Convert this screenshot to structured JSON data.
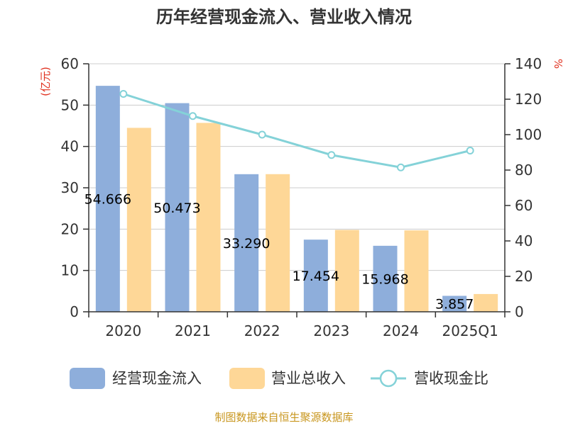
{
  "chart_data": {
    "type": "bar",
    "title": "历年经营现金流入、营业收入情况",
    "categories": [
      "2020",
      "2021",
      "2022",
      "2023",
      "2024",
      "2025Q1"
    ],
    "series": [
      {
        "name": "经营现金流入",
        "kind": "bar",
        "axis": "left",
        "color": "#8eaedb",
        "values": [
          54.666,
          50.473,
          33.29,
          17.454,
          15.968,
          3.857
        ],
        "labels": [
          "54.666",
          "50.473",
          "33.290",
          "17.454",
          "15.968",
          "3.857"
        ]
      },
      {
        "name": "营业总收入",
        "kind": "bar",
        "axis": "left",
        "color": "#fed797",
        "values": [
          44.5,
          45.7,
          33.3,
          19.8,
          19.7,
          4.3
        ]
      },
      {
        "name": "营收现金比",
        "kind": "line",
        "axis": "right",
        "color": "#84d2d8",
        "values": [
          123.0,
          110.5,
          100.0,
          88.5,
          81.5,
          91.0
        ]
      }
    ],
    "y_left": {
      "unit": "(亿元)",
      "ylim": [
        0,
        60
      ],
      "ticks": [
        "0",
        "10",
        "20",
        "30",
        "40",
        "50",
        "60"
      ]
    },
    "y_right": {
      "unit": "%",
      "ylim": [
        0,
        140
      ],
      "ticks": [
        "0",
        "20",
        "40",
        "60",
        "80",
        "100",
        "120",
        "140"
      ]
    },
    "legend_position": "bottom",
    "grid": true,
    "source": "制图数据来自恒生聚源数据库"
  }
}
